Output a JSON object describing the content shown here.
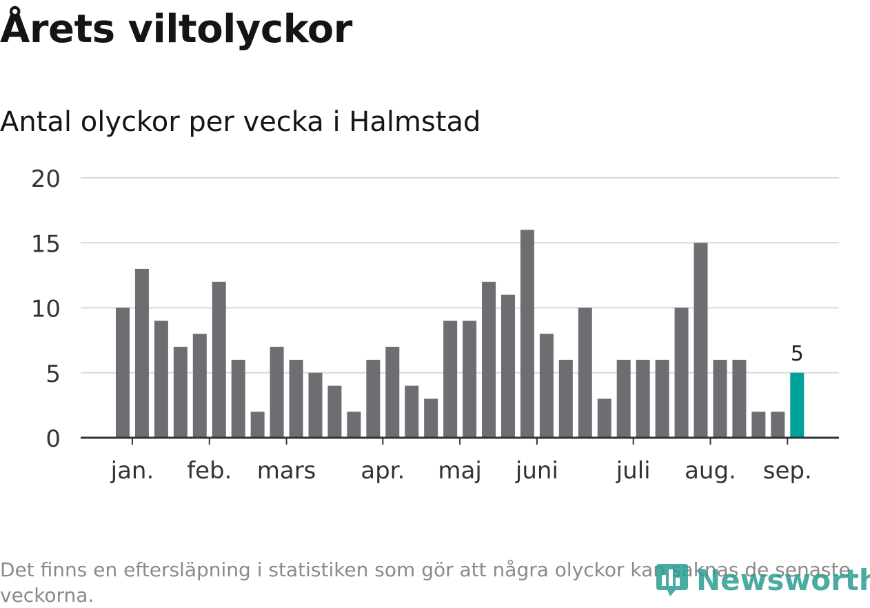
{
  "header": {
    "title": "Årets viltolyckor",
    "subtitle": "Antal olyckor per vecka i Halmstad"
  },
  "chart_data": {
    "type": "bar",
    "title": "Årets viltolyckor",
    "subtitle": "Antal olyckor per vecka i Halmstad",
    "xlabel": "",
    "ylabel": "",
    "ylim": [
      0,
      20
    ],
    "y_ticks": [
      0,
      5,
      10,
      15,
      20
    ],
    "grid": true,
    "values": [
      10,
      13,
      9,
      7,
      8,
      12,
      6,
      2,
      7,
      6,
      5,
      4,
      2,
      6,
      7,
      4,
      3,
      9,
      9,
      12,
      11,
      16,
      8,
      6,
      10,
      3,
      6,
      6,
      6,
      10,
      15,
      6,
      6,
      2,
      2,
      5
    ],
    "month_labels": [
      {
        "label": "jan.",
        "bar_index": 0.5
      },
      {
        "label": "feb.",
        "bar_index": 4.5
      },
      {
        "label": "mars",
        "bar_index": 8.5
      },
      {
        "label": "apr.",
        "bar_index": 13.5
      },
      {
        "label": "maj",
        "bar_index": 17.5
      },
      {
        "label": "juni",
        "bar_index": 21.5
      },
      {
        "label": "juli",
        "bar_index": 26.5
      },
      {
        "label": "aug.",
        "bar_index": 30.5
      },
      {
        "label": "sep.",
        "bar_index": 34.5
      }
    ],
    "highlight_index": 35,
    "highlight_label": "5",
    "colors": {
      "bar": "#6e6d72",
      "highlight": "#00a29a",
      "grid": "#d9d9d9",
      "axis": "#333333"
    }
  },
  "footer": {
    "note": "Det finns en eftersläpning i statistiken som gör att några olyckor kan saknas de senaste veckorna.",
    "brand": "Newsworthy",
    "brand_icon": "bar-chart-bubble-icon",
    "brand_color": "#2a9d92"
  }
}
